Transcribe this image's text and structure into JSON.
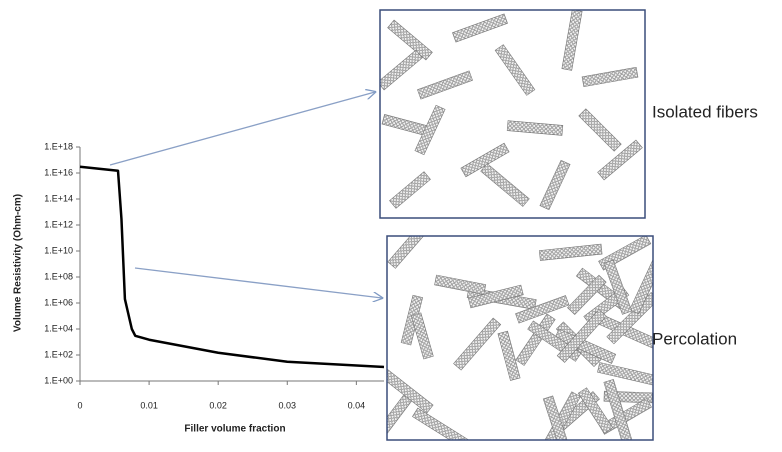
{
  "chart_data": {
    "type": "line",
    "x_label": "Filler volume fraction",
    "y_label": "Volume Resistivity (Ohm-cm)",
    "annotations": [
      "Isolated fibers",
      "Percolation"
    ],
    "x": [
      0,
      0.0055,
      0.006,
      0.0065,
      0.0075,
      0.008,
      0.01,
      0.02,
      0.03,
      0.044
    ],
    "series": [
      {
        "color": "#000000",
        "values": [
          30000000000000000,
          15000000000000000,
          3000000000000,
          2000000,
          10000,
          3000,
          1500,
          150,
          30,
          12
        ]
      }
    ],
    "xlim": [
      0,
      0.044
    ],
    "xticks": [
      0,
      0.01,
      0.02,
      0.03,
      0.04
    ],
    "ylim": [
      1,
      1e+18
    ],
    "ylog": true,
    "yticks": [
      {
        "value": 1,
        "label": "1.E+00"
      },
      {
        "value": 100,
        "label": "1.E+02"
      },
      {
        "value": 10000,
        "label": "1.E+04"
      },
      {
        "value": 1000000,
        "label": "1.E+06"
      },
      {
        "value": 100000000,
        "label": "1.E+08"
      },
      {
        "value": 10000000000,
        "label": "1.E+10"
      },
      {
        "value": 1000000000000,
        "label": "1.E+12"
      },
      {
        "value": 100000000000000,
        "label": "1.E+14"
      },
      {
        "value": 10000000000000000,
        "label": "1.E+16"
      },
      {
        "value": 1000000000000000000,
        "label": "1.E+18"
      }
    ]
  }
}
